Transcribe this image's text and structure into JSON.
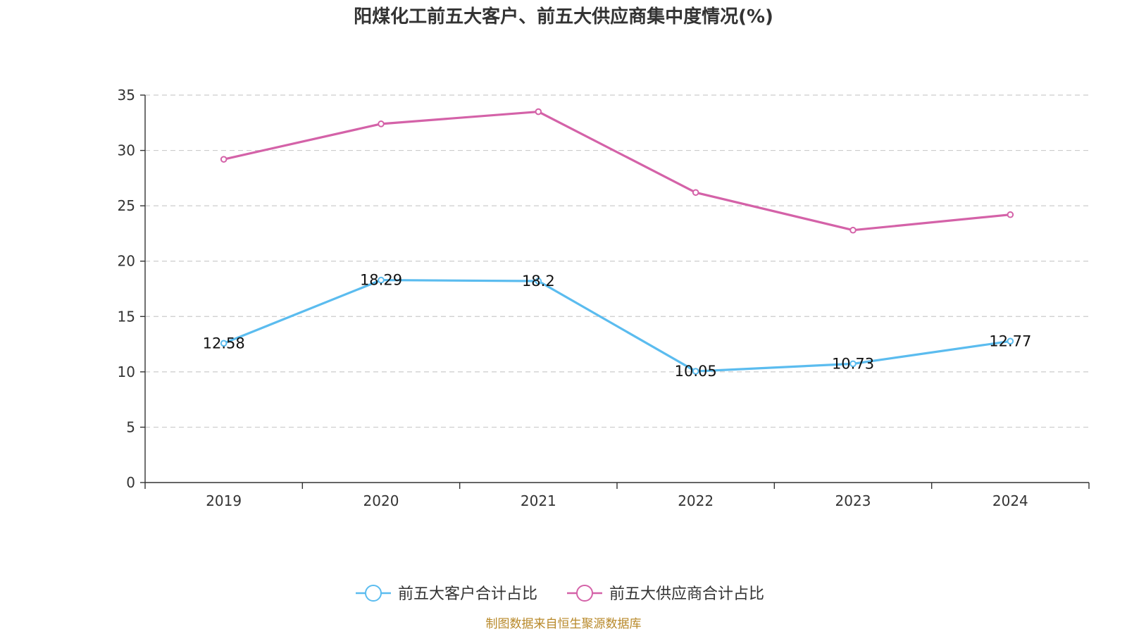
{
  "chart_data": {
    "type": "line",
    "title": "阳煤化工前五大客户、前五大供应商集中度情况(%)",
    "categories": [
      "2019",
      "2020",
      "2021",
      "2022",
      "2023",
      "2024"
    ],
    "ylim": [
      0,
      35
    ],
    "yticks": [
      0,
      5,
      10,
      15,
      20,
      25,
      30,
      35
    ],
    "grid": true,
    "legend_position": "bottom",
    "series": [
      {
        "name": "前五大客户合计占比",
        "color": "#5bbcef",
        "values": [
          12.58,
          18.29,
          18.2,
          10.05,
          10.73,
          12.77
        ],
        "labels": [
          "12.58",
          "18.29",
          "18.2",
          "10.05",
          "10.73",
          "12.77"
        ]
      },
      {
        "name": "前五大供应商合计占比",
        "color": "#d462a8",
        "values": [
          29.2,
          32.4,
          33.5,
          26.2,
          22.8,
          24.2
        ]
      }
    ]
  },
  "source": "制图数据来自恒生聚源数据库"
}
